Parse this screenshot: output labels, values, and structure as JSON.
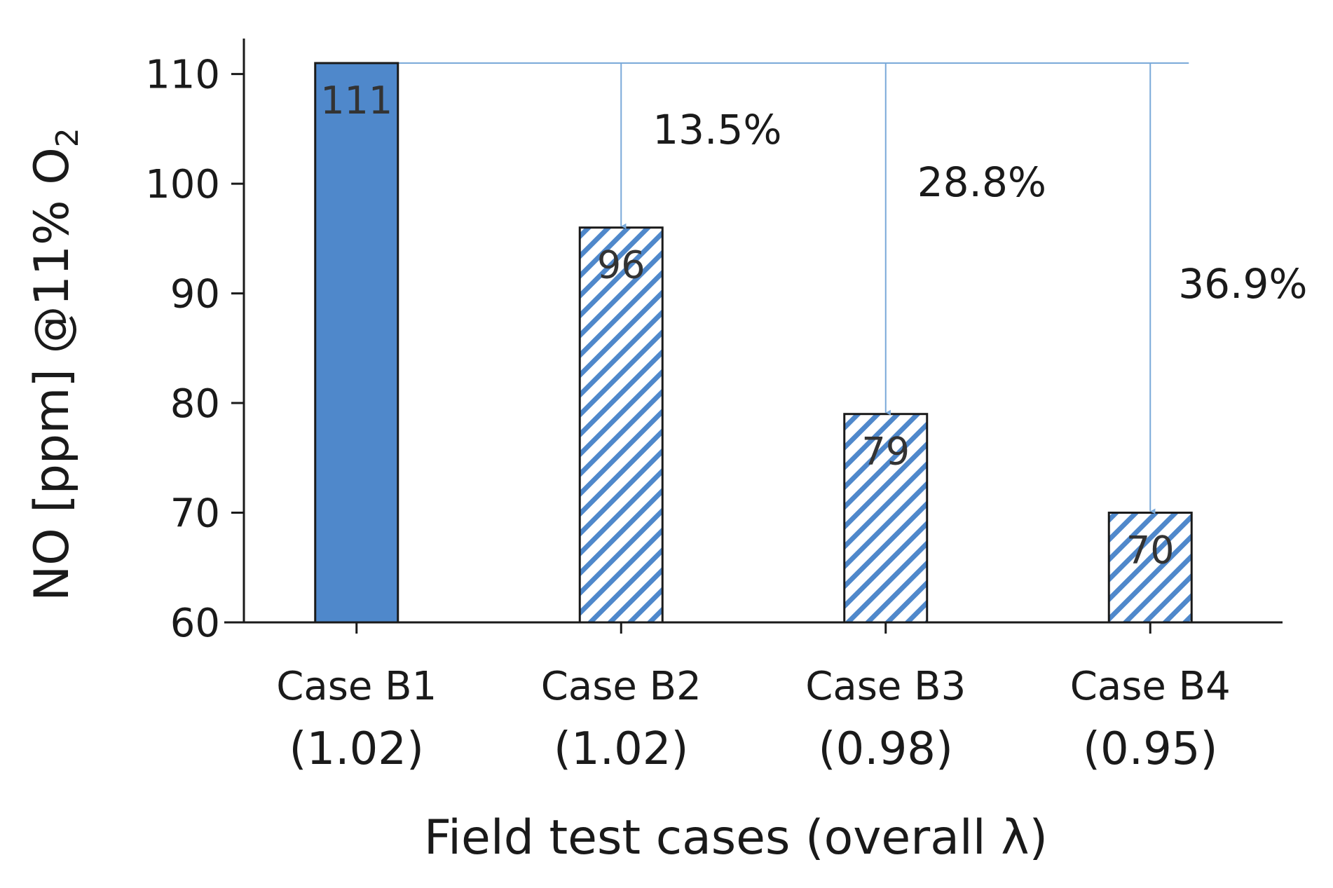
{
  "chart_data": {
    "type": "bar",
    "title": "",
    "xlabel": "Field test cases (overall λ)",
    "ylabel": "NO [ppm] @11% O",
    "ylabel_subscript": "2",
    "ylim": [
      60,
      111
    ],
    "yticks": [
      60,
      70,
      80,
      90,
      100,
      110
    ],
    "categories": [
      "Case B1",
      "Case B2",
      "Case B3",
      "Case B4"
    ],
    "category_params": [
      "(1.02)",
      "(1.02)",
      "(0.98)",
      "(0.95)"
    ],
    "values": [
      111,
      96,
      79,
      70
    ],
    "bar_styles": [
      "solid",
      "hatched",
      "hatched",
      "hatched"
    ],
    "reductions": [
      {
        "category": "Case B2",
        "label": "13.5%"
      },
      {
        "category": "Case B3",
        "label": "28.8%"
      },
      {
        "category": "Case B4",
        "label": "36.9%"
      }
    ],
    "colors": {
      "bar_fill": "#4f88cb",
      "hatch": "#4f88cb",
      "hatch_bg": "#ffffff",
      "arrow": "#7aa9d9",
      "axis": "#1a1a1a"
    }
  }
}
